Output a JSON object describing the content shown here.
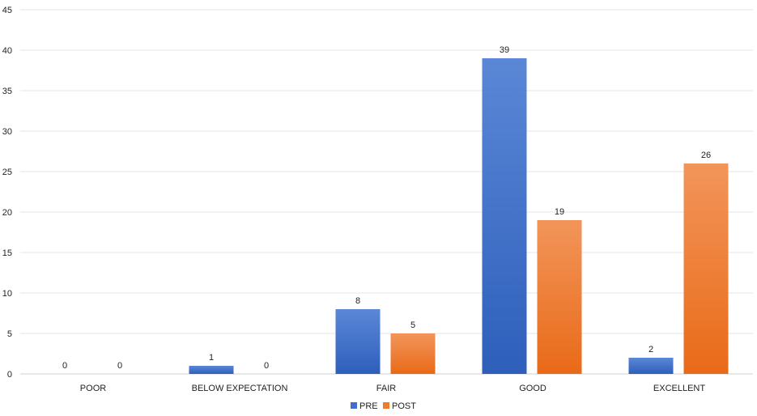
{
  "chart_data": {
    "type": "bar",
    "title": "",
    "xlabel": "",
    "ylabel": "",
    "categories": [
      "POOR",
      "BELOW EXPECTATION",
      "FAIR",
      "GOOD",
      "EXCELLENT"
    ],
    "series": [
      {
        "name": "PRE",
        "values": [
          0,
          1,
          8,
          39,
          2
        ],
        "color": "#3f6fc9"
      },
      {
        "name": "POST",
        "values": [
          0,
          0,
          5,
          19,
          26
        ],
        "color": "#ef7b2c"
      }
    ],
    "ylim": [
      0,
      45
    ],
    "yticks": [
      0,
      5,
      10,
      15,
      20,
      25,
      30,
      35,
      40,
      45
    ],
    "grid": true,
    "legend": "bottom-center",
    "data_labels": true
  }
}
